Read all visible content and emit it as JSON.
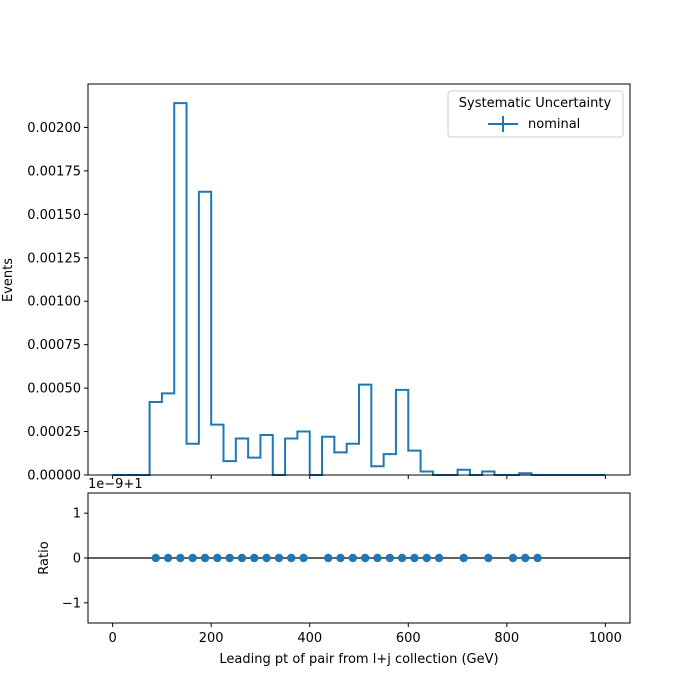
{
  "chart_data": [
    {
      "type": "step-histogram",
      "ylabel": "Events",
      "xlim": [
        -50,
        1050
      ],
      "ylim": [
        0,
        0.00225
      ],
      "yticks": [
        "0.00000",
        "0.00025",
        "0.00050",
        "0.00075",
        "0.00100",
        "0.00125",
        "0.00150",
        "0.00175",
        "0.00200"
      ],
      "xticks": [
        "0",
        "200",
        "400",
        "600",
        "800",
        "1000"
      ],
      "legend": {
        "title": "Systematic Uncertainty",
        "entries": [
          "nominal"
        ],
        "placement": "top-right"
      },
      "bin_width": 25,
      "series": [
        {
          "name": "nominal",
          "color": "#1f77b4",
          "bin_edges": [
            0,
            25,
            50,
            75,
            100,
            125,
            150,
            175,
            200,
            225,
            250,
            275,
            300,
            325,
            350,
            375,
            400,
            425,
            450,
            475,
            500,
            525,
            550,
            575,
            600,
            625,
            650,
            675,
            700,
            725,
            750,
            775,
            800,
            825,
            850,
            875,
            900,
            925,
            950,
            975,
            1000
          ],
          "values": [
            0,
            0,
            0,
            0.00042,
            0.00047,
            0.00214,
            0.00018,
            0.00163,
            0.00029,
            8e-05,
            0.00021,
            0.0001,
            0.00023,
            0,
            0.00021,
            0.00025,
            0,
            0.00022,
            0.00013,
            0.00018,
            0.00052,
            5e-05,
            0.00012,
            0.00049,
            0.00014,
            2e-05,
            0,
            0,
            3e-05,
            0,
            2e-05,
            0,
            0,
            1e-05,
            0,
            0,
            0,
            0,
            0,
            0
          ]
        }
      ]
    },
    {
      "type": "scatter",
      "ylabel": "Ratio",
      "xlabel": "Leading pt of pair from l+j collection (GeV)",
      "offset_text": "1e−9+1",
      "xlim": [
        -50,
        1050
      ],
      "ylim": [
        -1.45,
        1.45
      ],
      "yticks": [
        "−1",
        "0",
        "1"
      ],
      "xticks": [
        "0",
        "200",
        "400",
        "600",
        "800",
        "1000"
      ],
      "reference_line": 0,
      "series": [
        {
          "name": "nominal",
          "color": "#1f77b4",
          "x": [
            87.5,
            112.5,
            137.5,
            162.5,
            187.5,
            212.5,
            237.5,
            262.5,
            287.5,
            312.5,
            337.5,
            362.5,
            387.5,
            437.5,
            462.5,
            487.5,
            512.5,
            537.5,
            562.5,
            587.5,
            612.5,
            637.5,
            662.5,
            712.5,
            762.5,
            812.5,
            837.5,
            862.5
          ],
          "y": [
            0,
            0,
            0,
            0,
            0,
            0,
            0,
            0,
            0,
            0,
            0,
            0,
            0,
            0,
            0,
            0,
            0,
            0,
            0,
            0,
            0,
            0,
            0,
            0,
            0,
            0,
            0,
            0
          ]
        }
      ]
    }
  ]
}
